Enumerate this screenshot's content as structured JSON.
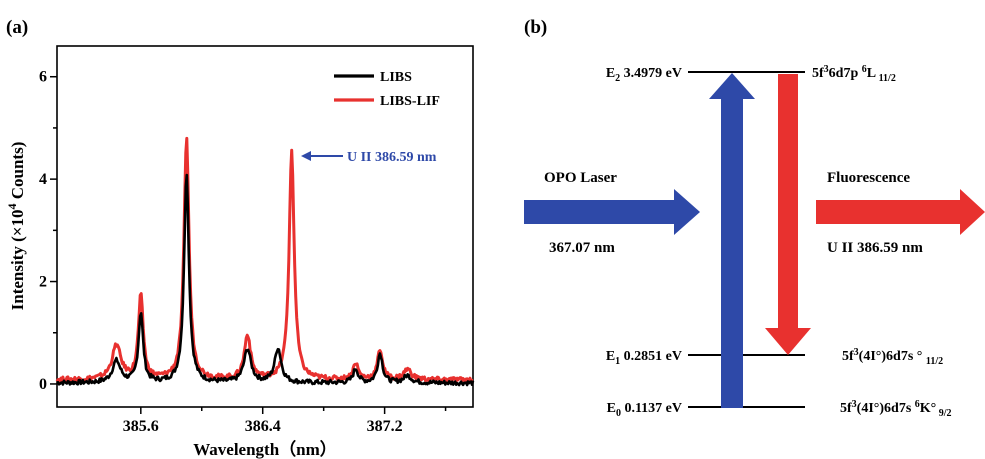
{
  "panel_a": {
    "label": "(a)",
    "annotation": "U II 386.59 nm",
    "chart_data": {
      "type": "line",
      "xlabel": "Wavelength（nm）",
      "ylabel_pre": "Intensity (×10",
      "ylabel_sup": "4",
      "ylabel_post": " Counts)",
      "xlim": [
        385.05,
        387.78
      ],
      "ylim": [
        -0.45,
        6.6
      ],
      "x_ticks": [
        385.6,
        386.0,
        386.4,
        386.8,
        387.2,
        387.6
      ],
      "x_tick_labels": [
        "385.6",
        "386.4",
        "387.2"
      ],
      "x_tick_labeled": [
        385.6,
        386.4,
        387.2
      ],
      "y_ticks": [
        0,
        1,
        2,
        3,
        4,
        5,
        6
      ],
      "y_tick_labels": [
        "0",
        "2",
        "4",
        "6"
      ],
      "y_tick_labeled": [
        0,
        2,
        4,
        6
      ],
      "legend_position": "top-right",
      "series": [
        {
          "name": "LIBS",
          "color": "#000000",
          "baseline": 0.02,
          "peaks": [
            {
              "center": 385.44,
              "height": 0.42,
              "width": 0.032
            },
            {
              "center": 385.6,
              "height": 1.36,
              "width": 0.018
            },
            {
              "center": 385.9,
              "height": 4.12,
              "width": 0.019
            },
            {
              "center": 386.3,
              "height": 0.65,
              "width": 0.028
            },
            {
              "center": 386.5,
              "height": 0.67,
              "width": 0.026
            },
            {
              "center": 387.01,
              "height": 0.27,
              "width": 0.02
            },
            {
              "center": 387.17,
              "height": 0.57,
              "width": 0.02
            },
            {
              "center": 387.35,
              "height": 0.14,
              "width": 0.03
            }
          ]
        },
        {
          "name": "LIBS-LIF",
          "color": "#e8312f",
          "baseline": 0.08,
          "peaks": [
            {
              "center": 385.44,
              "height": 0.66,
              "width": 0.035
            },
            {
              "center": 385.6,
              "height": 1.62,
              "width": 0.019
            },
            {
              "center": 385.9,
              "height": 4.73,
              "width": 0.02
            },
            {
              "center": 386.3,
              "height": 0.86,
              "width": 0.025
            },
            {
              "center": 386.59,
              "height": 4.47,
              "width": 0.02
            },
            {
              "center": 387.01,
              "height": 0.32,
              "width": 0.02
            },
            {
              "center": 387.17,
              "height": 0.58,
              "width": 0.02
            },
            {
              "center": 387.35,
              "height": 0.2,
              "width": 0.03
            }
          ]
        }
      ]
    }
  },
  "panel_b": {
    "label": "(b)",
    "levels": [
      {
        "id": "E2",
        "name": "E",
        "sub": "2",
        "energy": " 3.4979 eV",
        "config_pre": "5f",
        "config_sup1": "3",
        "config_mid": "6d7p ",
        "config_sup2": "6",
        "config_post": "L",
        "config_sub": " 11/2"
      },
      {
        "id": "E1",
        "name": "E",
        "sub": "1",
        "energy": " 0.2851 eV",
        "config_pre": "5f",
        "config_sup1": "3",
        "config_mid": "(4I°)6d7s ° ",
        "config_sub": "11/2"
      },
      {
        "id": "E0",
        "name": "E",
        "sub": "0",
        "energy": " 0.1137 eV",
        "config_pre": "5f",
        "config_sup1": "3",
        "config_mid": "(4I°)6d7s ",
        "config_sup2": "6",
        "config_post": "K°",
        "config_sub": " 9/2"
      }
    ],
    "left_arrow_label": "OPO Laser",
    "left_arrow_value": "367.07 nm",
    "right_arrow_label": "Fluorescence",
    "right_arrow_value": "U II 386.59 nm",
    "colors": {
      "excitation": "#2e49a8",
      "fluorescence": "#e8312f"
    }
  }
}
